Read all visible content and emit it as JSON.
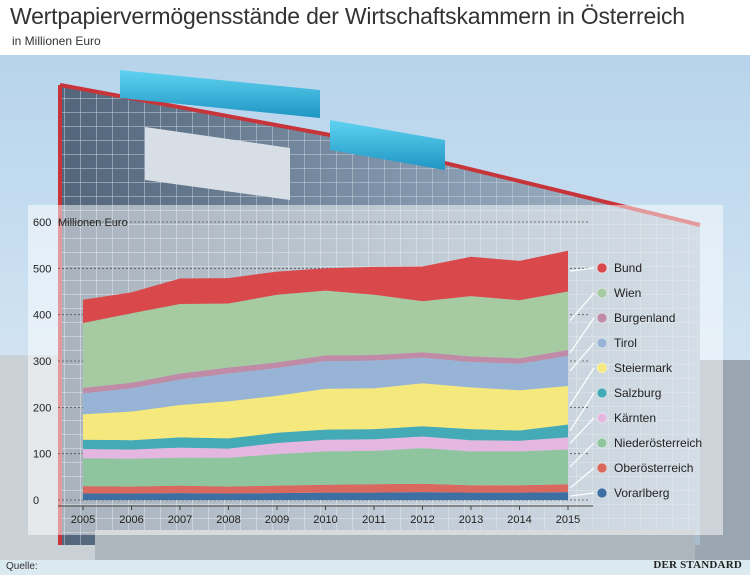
{
  "title": "Wertpapiervermögensstände der Wirtschaftskammern in Österreich",
  "subtitle": "in Millionen Euro",
  "footer": {
    "source": "Quelle:",
    "brand": "DER STANDARD"
  },
  "icons": {
    "background": "office-building-photo"
  },
  "chart_data": {
    "type": "area",
    "stacked": true,
    "ylabel": "Millionen Euro",
    "ylim": [
      0,
      600
    ],
    "yticks": [
      0,
      100,
      200,
      300,
      400,
      500,
      600
    ],
    "x": [
      "2005",
      "2006",
      "2007",
      "2008",
      "2009",
      "2010",
      "2011",
      "2012",
      "2013",
      "2014",
      "2015"
    ],
    "legend_position": "right",
    "grid": true,
    "series": [
      {
        "name": "Vorarlberg",
        "color": "#3e6fa3",
        "values": [
          14,
          14,
          15,
          14,
          15,
          16,
          16,
          17,
          16,
          16,
          17
        ]
      },
      {
        "name": "Oberösterreich",
        "color": "#d9685e",
        "values": [
          16,
          15,
          16,
          15,
          16,
          17,
          18,
          18,
          16,
          16,
          17
        ]
      },
      {
        "name": "Niederösterreich",
        "color": "#8ec59e",
        "values": [
          60,
          60,
          60,
          62,
          68,
          72,
          72,
          77,
          73,
          73,
          75
        ]
      },
      {
        "name": "Kärnten",
        "color": "#e3b7e0",
        "values": [
          20,
          20,
          22,
          20,
          24,
          25,
          25,
          25,
          24,
          23,
          26
        ]
      },
      {
        "name": "Salzburg",
        "color": "#43aab6",
        "values": [
          20,
          20,
          22,
          22,
          22,
          22,
          22,
          22,
          24,
          22,
          28
        ]
      },
      {
        "name": "Steiermark",
        "color": "#f5e87c",
        "values": [
          55,
          62,
          70,
          80,
          80,
          88,
          88,
          93,
          90,
          87,
          83
        ]
      },
      {
        "name": "Tirol",
        "color": "#97b4d6",
        "values": [
          45,
          50,
          55,
          60,
          60,
          60,
          60,
          55,
          55,
          57,
          65
        ]
      },
      {
        "name": "Burgenland",
        "color": "#bf8ba6",
        "values": [
          12,
          12,
          13,
          13,
          12,
          12,
          12,
          12,
          12,
          12,
          13
        ]
      },
      {
        "name": "Wien",
        "color": "#a6cba3",
        "values": [
          140,
          150,
          150,
          138,
          146,
          140,
          130,
          110,
          130,
          125,
          126
        ]
      },
      {
        "name": "Bund",
        "color": "#d9484b",
        "values": [
          50,
          45,
          55,
          55,
          50,
          48,
          60,
          75,
          85,
          85,
          88
        ]
      }
    ]
  }
}
